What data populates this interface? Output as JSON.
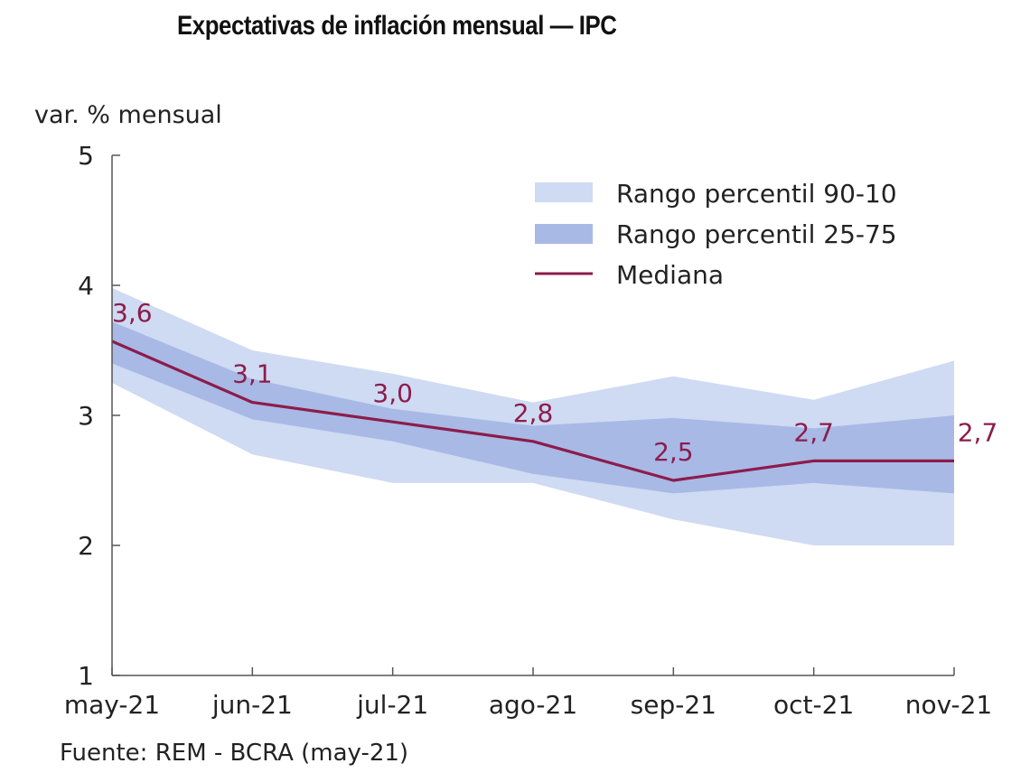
{
  "chart_data": {
    "type": "area",
    "title": "Expectativas de inflación mensual — IPC",
    "ylabel": "var. % mensual",
    "xlabel": "",
    "source": "Fuente: REM - BCRA (may-21)",
    "categories": [
      "may-21",
      "jun-21",
      "jul-21",
      "ago-21",
      "sep-21",
      "oct-21",
      "nov-21"
    ],
    "ylim": [
      1,
      5
    ],
    "yticks": [
      1,
      2,
      3,
      4,
      5
    ],
    "grid": false,
    "legend_position": "top-right",
    "series": [
      {
        "name": "Rango percentil 90-10",
        "kind": "band",
        "color": "#cfdaf3",
        "lower": [
          3.25,
          2.7,
          2.48,
          2.48,
          2.2,
          2.0,
          2.0
        ],
        "upper": [
          3.98,
          3.5,
          3.32,
          3.1,
          3.3,
          3.12,
          3.42
        ]
      },
      {
        "name": "Rango percentil 25-75",
        "kind": "band",
        "color": "#a8b9e6",
        "lower": [
          3.4,
          2.97,
          2.8,
          2.55,
          2.4,
          2.48,
          2.4
        ],
        "upper": [
          3.72,
          3.28,
          3.05,
          2.92,
          2.98,
          2.9,
          3.0
        ]
      },
      {
        "name": "Mediana",
        "kind": "line",
        "color": "#8c1c4b",
        "values": [
          3.57,
          3.1,
          2.95,
          2.8,
          2.5,
          2.65,
          2.65
        ],
        "labels": [
          "3,6",
          "3,1",
          "3,0",
          "2,8",
          "2,5",
          "2,7",
          "2,7"
        ]
      }
    ]
  }
}
